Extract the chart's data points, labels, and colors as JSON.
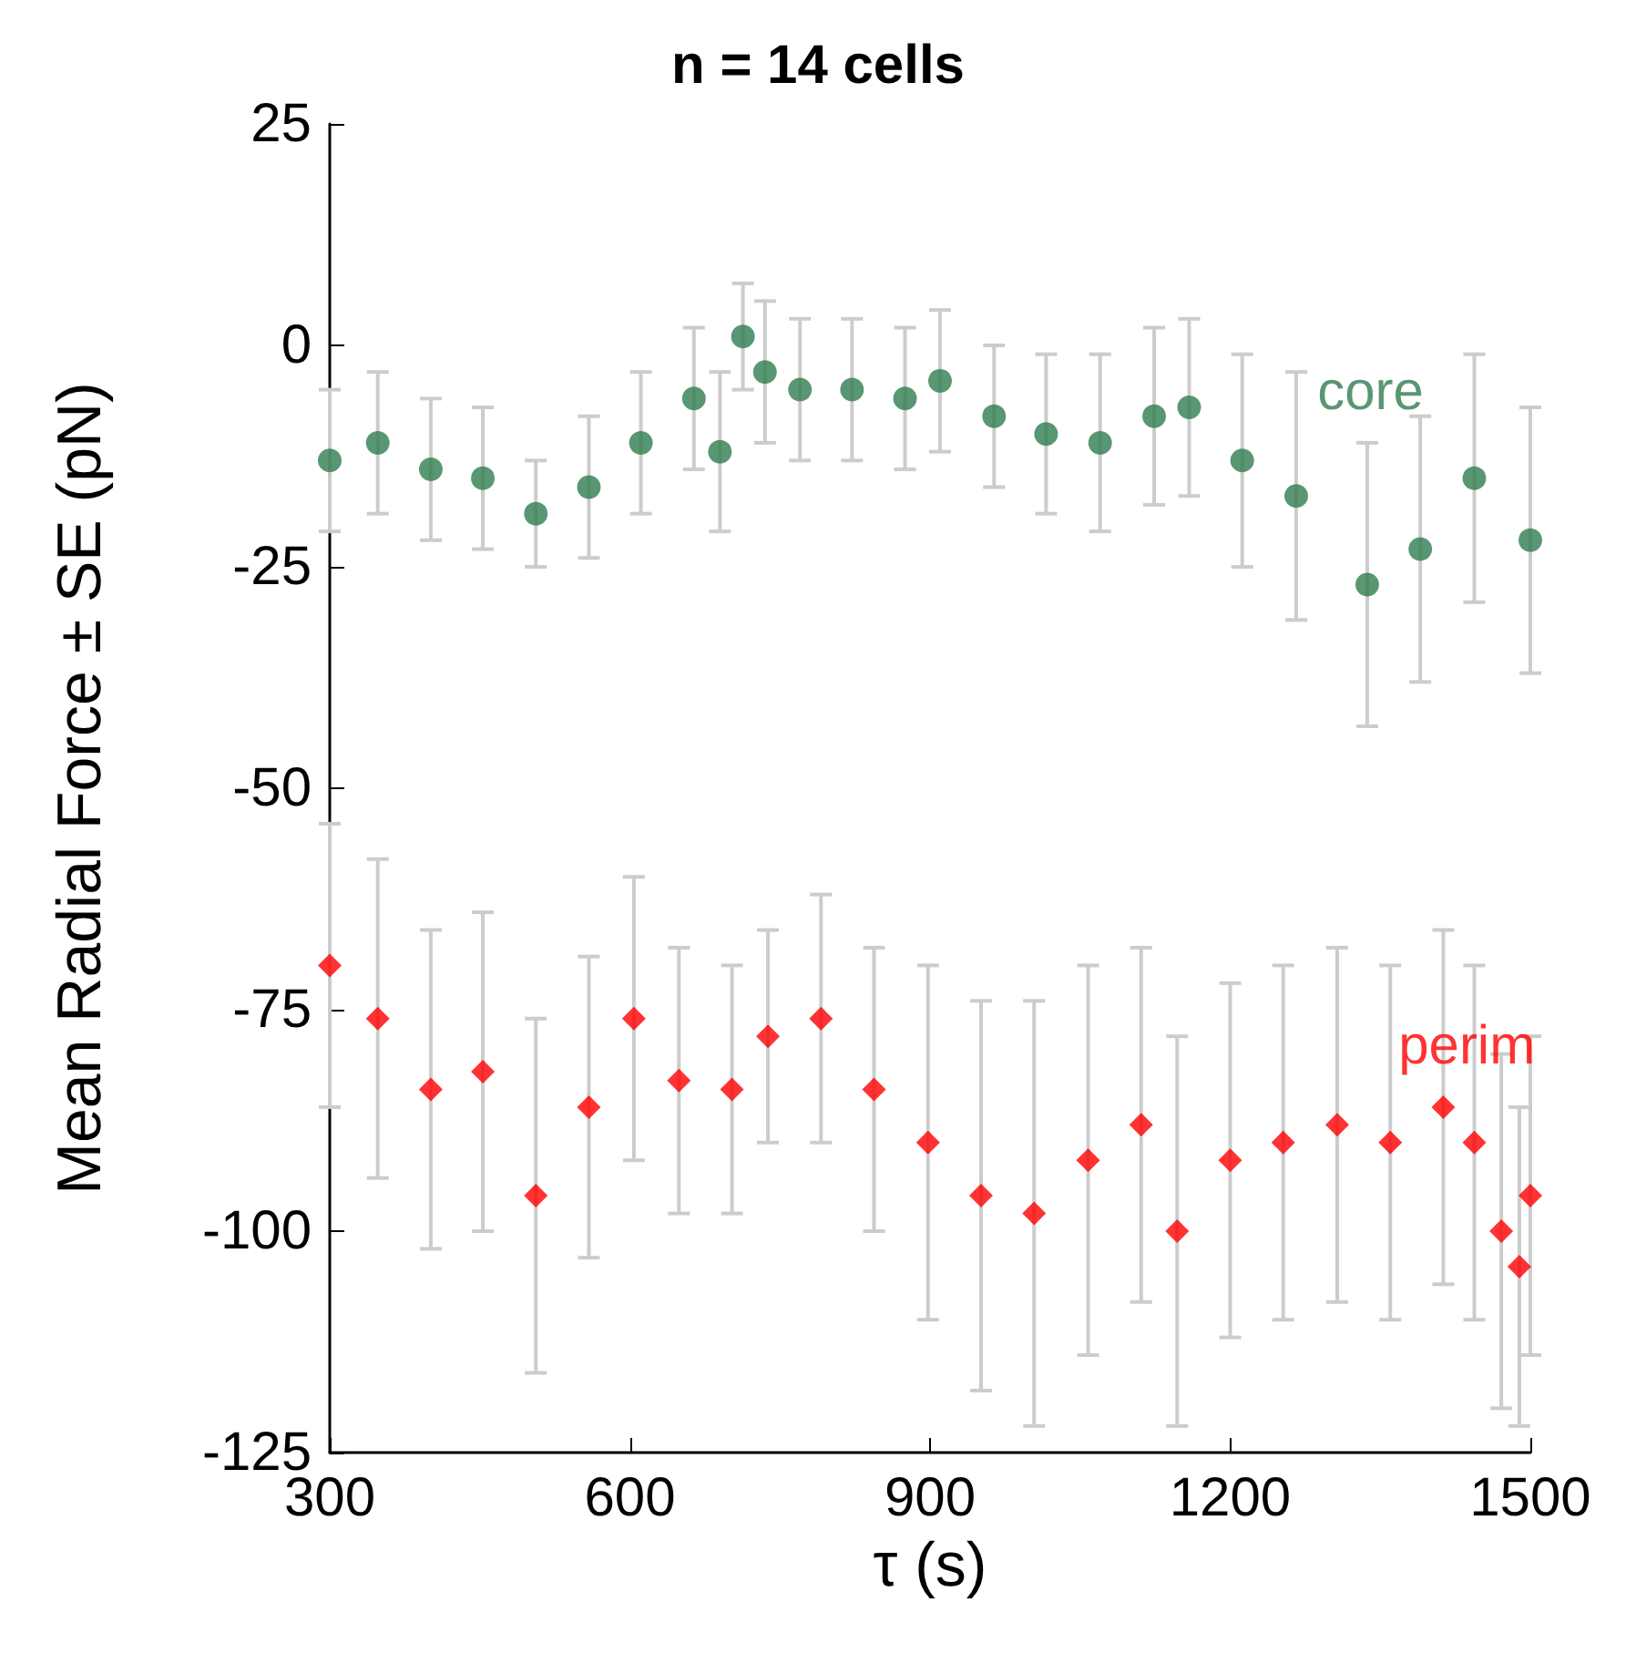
{
  "chart_data": {
    "type": "scatter",
    "title": "n = 14 cells",
    "xlabel": "τ (s)",
    "ylabel": "Mean Radial Force ± SE (pN)",
    "xlim": [
      300,
      1500
    ],
    "xticks": [
      300,
      600,
      900,
      1200,
      1500
    ],
    "ylim": [
      -125,
      25
    ],
    "yticks": [
      -125,
      -100,
      -75,
      -50,
      -25,
      0,
      25
    ],
    "grid": false,
    "legend": false,
    "series": [
      {
        "name": "core",
        "color": "#2e7d4f",
        "marker": "circle",
        "x": [
          300,
          348,
          401,
          453,
          506,
          559,
          611,
          664,
          690,
          713,
          735,
          770,
          822,
          875,
          910,
          964,
          1016,
          1070,
          1124,
          1159,
          1212,
          1266,
          1337,
          1390,
          1444,
          1500
        ],
        "values": [
          -13,
          -11,
          -14,
          -15,
          -19,
          -16,
          -11,
          -6,
          -12,
          1,
          -3,
          -5,
          -5,
          -6,
          -4,
          -8,
          -10,
          -11,
          -8,
          -7,
          -13,
          -17,
          -27,
          -23,
          -15,
          -22
        ],
        "errors": [
          8,
          8,
          8,
          8,
          6,
          8,
          8,
          8,
          9,
          6,
          8,
          8,
          8,
          8,
          8,
          8,
          9,
          10,
          10,
          10,
          12,
          14,
          16,
          15,
          14,
          15
        ]
      },
      {
        "name": "perim",
        "color": "#ff0000",
        "marker": "diamond",
        "x": [
          300,
          348,
          401,
          453,
          506,
          559,
          604,
          649,
          702,
          738,
          791,
          844,
          898,
          951,
          1004,
          1058,
          1111,
          1147,
          1200,
          1253,
          1307,
          1360,
          1413,
          1444,
          1471,
          1489,
          1500
        ],
        "values": [
          -70,
          -76,
          -84,
          -82,
          -96,
          -86,
          -76,
          -83,
          -84,
          -78,
          -76,
          -84,
          -90,
          -96,
          -98,
          -92,
          -88,
          -100,
          -92,
          -90,
          -88,
          -90,
          -86,
          -90,
          -100,
          -104,
          -96
        ],
        "errors": [
          16,
          18,
          18,
          18,
          20,
          17,
          16,
          15,
          14,
          12,
          14,
          16,
          20,
          22,
          24,
          22,
          20,
          22,
          20,
          20,
          20,
          20,
          20,
          20,
          20,
          18,
          18
        ]
      }
    ]
  }
}
